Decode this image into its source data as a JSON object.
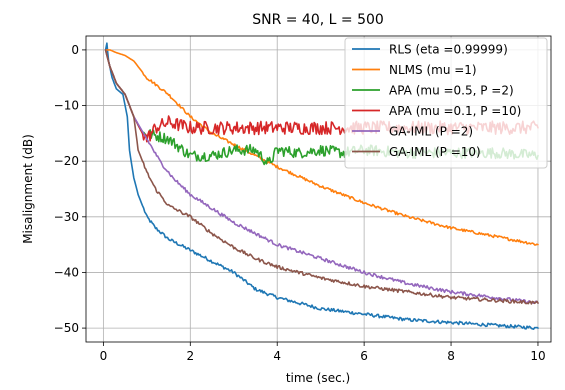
{
  "chart_data": {
    "type": "line",
    "title": "SNR = 40, L = 500",
    "xlabel": "time (sec.)",
    "ylabel": "Misalignment (dB)",
    "xlim": [
      -0.4,
      10.3
    ],
    "ylim": [
      -52.5,
      2.5
    ],
    "xticks": [
      0,
      2,
      4,
      6,
      8,
      10
    ],
    "yticks": [
      0,
      -10,
      -20,
      -30,
      -40,
      -50
    ],
    "xtick_labels": [
      "0",
      "2",
      "4",
      "6",
      "8",
      "10"
    ],
    "ytick_labels": [
      "0",
      "−10",
      "−20",
      "−30",
      "−40",
      "−50"
    ],
    "grid": true,
    "legend_position": "top-right",
    "series": [
      {
        "name": "RLS (eta =0.99999)",
        "color": "#1f77b4",
        "noise": 0.3,
        "x": [
          0.05,
          0.08,
          0.12,
          0.2,
          0.3,
          0.45,
          0.55,
          0.6,
          0.7,
          0.8,
          1.0,
          1.2,
          1.5,
          2.0,
          2.5,
          3.0,
          3.5,
          4.0,
          5.0,
          6.0,
          7.0,
          8.0,
          9.0,
          10.0
        ],
        "y": [
          0,
          1.2,
          -2,
          -5,
          -7,
          -8,
          -12,
          -18,
          -23,
          -26,
          -30,
          -32,
          -34,
          -36,
          -38,
          -40,
          -43,
          -44.5,
          -46.5,
          -47.5,
          -48.5,
          -49,
          -49.5,
          -50
        ]
      },
      {
        "name": "NLMS (mu =1)",
        "color": "#ff7f0e",
        "noise": 0.25,
        "x": [
          0.05,
          0.15,
          0.3,
          0.5,
          0.7,
          1.0,
          1.5,
          2.0,
          2.5,
          3.0,
          3.5,
          4.0,
          5.0,
          6.0,
          7.0,
          8.0,
          9.0,
          10.0
        ],
        "y": [
          0,
          0,
          -0.5,
          -1,
          -2,
          -5,
          -8,
          -12,
          -15,
          -17,
          -19,
          -21,
          -24.5,
          -27.5,
          -30,
          -32,
          -33.5,
          -35
        ]
      },
      {
        "name": "APA (mu =0.5, P =2)",
        "color": "#2ca02c",
        "noise": 1.0,
        "x": [
          0.05,
          0.15,
          0.3,
          0.5,
          0.7,
          0.9,
          1.0,
          1.5,
          2.0,
          2.5,
          3.0,
          3.5,
          3.8,
          4.0,
          4.5,
          5.0,
          5.5,
          6.0,
          7.0,
          8.0,
          9.0,
          10.0
        ],
        "y": [
          0,
          -3,
          -6,
          -8,
          -12,
          -15,
          -15,
          -16,
          -19,
          -19,
          -18,
          -18,
          -20.5,
          -18,
          -18.5,
          -18,
          -18.5,
          -18,
          -18.5,
          -18.5,
          -18.5,
          -19
        ]
      },
      {
        "name": "APA (mu =0.1, P =10)",
        "color": "#d62728",
        "noise": 1.2,
        "x": [
          0.05,
          0.15,
          0.3,
          0.5,
          0.7,
          0.9,
          1.0,
          1.2,
          1.5,
          2.0,
          2.5,
          3.0,
          4.0,
          5.0,
          6.0,
          7.0,
          8.0,
          9.0,
          10.0
        ],
        "y": [
          0,
          -3,
          -6,
          -8,
          -12,
          -15,
          -16,
          -14,
          -13,
          -14,
          -14,
          -14,
          -14,
          -14,
          -14,
          -14,
          -14,
          -14,
          -14
        ]
      },
      {
        "name": "GA-IML (P =2)",
        "color": "#9467bd",
        "noise": 0.3,
        "x": [
          0.05,
          0.15,
          0.3,
          0.5,
          0.7,
          1.0,
          1.3,
          1.6,
          2.0,
          2.5,
          3.0,
          3.5,
          4.0,
          5.0,
          6.0,
          7.0,
          8.0,
          9.0,
          10.0
        ],
        "y": [
          0,
          -3,
          -6,
          -8,
          -12,
          -16,
          -20,
          -23,
          -26,
          -28.5,
          -31,
          -33,
          -35,
          -37.5,
          -40,
          -42,
          -43.5,
          -44.5,
          -45.5
        ]
      },
      {
        "name": "GA-IML (P =10)",
        "color": "#8c564b",
        "noise": 0.3,
        "x": [
          0.05,
          0.15,
          0.3,
          0.5,
          0.7,
          0.8,
          1.0,
          1.2,
          1.5,
          2.0,
          2.5,
          3.0,
          3.5,
          4.0,
          5.0,
          6.0,
          7.0,
          8.0,
          9.0,
          10.0
        ],
        "y": [
          0,
          -3,
          -6,
          -8,
          -12,
          -18,
          -22,
          -25,
          -28,
          -30,
          -33,
          -35.5,
          -37.5,
          -39,
          -41,
          -42.5,
          -43.5,
          -44.5,
          -45,
          -45.5
        ]
      }
    ]
  }
}
